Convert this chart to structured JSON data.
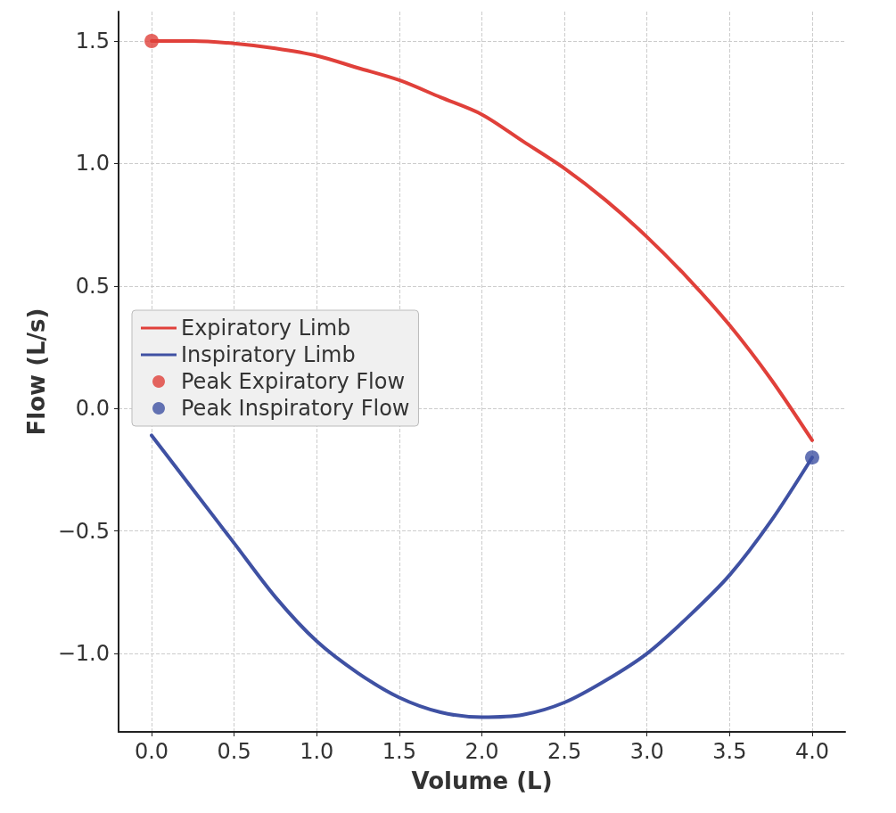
{
  "chart_data": {
    "type": "line",
    "xlabel": "Volume (L)",
    "ylabel": "Flow (L/s)",
    "xlim": [
      -0.2,
      4.2
    ],
    "ylim": [
      -1.32,
      1.62
    ],
    "xticks": [
      {
        "value": 0,
        "label": "0.0"
      },
      {
        "value": 0.5,
        "label": "0.5"
      },
      {
        "value": 1,
        "label": "1.0"
      },
      {
        "value": 1.5,
        "label": "1.5"
      },
      {
        "value": 2,
        "label": "2.0"
      },
      {
        "value": 2.5,
        "label": "2.5"
      },
      {
        "value": 3,
        "label": "3.0"
      },
      {
        "value": 3.5,
        "label": "3.5"
      },
      {
        "value": 4,
        "label": "4.0"
      }
    ],
    "yticks": [
      {
        "value": -1,
        "label": "−1.0"
      },
      {
        "value": -0.5,
        "label": "−0.5"
      },
      {
        "value": 0,
        "label": "0.0"
      },
      {
        "value": 0.5,
        "label": "0.5"
      },
      {
        "value": 1,
        "label": "1.0"
      },
      {
        "value": 1.5,
        "label": "1.5"
      }
    ],
    "grid": true,
    "legend": "left",
    "line_style": "solid",
    "series": [
      {
        "name": "Expiratory Limb",
        "marker": "none",
        "color": "#e0403a",
        "x": [
          0,
          0.25,
          0.5,
          0.75,
          1,
          1.25,
          1.5,
          1.75,
          2,
          2.25,
          2.5,
          2.75,
          3,
          3.25,
          3.5,
          3.75,
          4
        ],
        "values": [
          1.5,
          1.5,
          1.49,
          1.47,
          1.44,
          1.39,
          1.34,
          1.27,
          1.2,
          1.09,
          0.98,
          0.85,
          0.7,
          0.53,
          0.34,
          0.12,
          -0.13
        ]
      },
      {
        "name": "Inspiratory Limb",
        "marker": "none",
        "color": "#3f51a3",
        "x": [
          0,
          0.25,
          0.5,
          0.75,
          1,
          1.25,
          1.5,
          1.75,
          2,
          2.25,
          2.5,
          2.75,
          3,
          3.25,
          3.5,
          3.75,
          4
        ],
        "values": [
          -0.11,
          -0.33,
          -0.55,
          -0.77,
          -0.95,
          -1.08,
          -1.18,
          -1.24,
          -1.26,
          -1.25,
          -1.2,
          -1.11,
          -1.0,
          -0.85,
          -0.68,
          -0.46,
          -0.2
        ]
      },
      {
        "name": "Peak Expiratory Flow",
        "type": "scatter",
        "marker": "circle",
        "color": "#e0403a",
        "x": [
          0
        ],
        "values": [
          1.5
        ]
      },
      {
        "name": "Peak Inspiratory Flow",
        "type": "scatter",
        "marker": "circle",
        "color": "#3f51a3",
        "x": [
          4
        ],
        "values": [
          -0.2
        ]
      }
    ]
  }
}
